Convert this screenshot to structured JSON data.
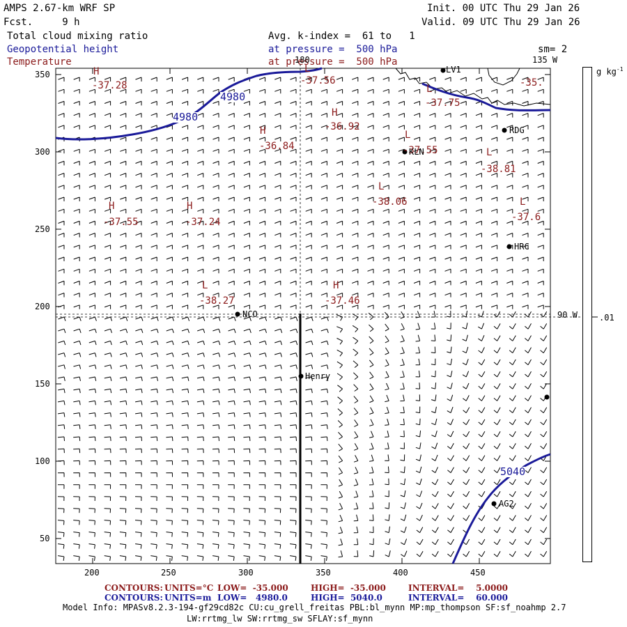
{
  "header": {
    "product": "AMPS 2.67-km WRF SP",
    "forecast": "Fcst.     9 h",
    "init": "Init. 00 UTC Thu 29 Jan 26",
    "valid": "Valid. 09 UTC Thu 29 Jan 26",
    "field_cloud": "Total cloud mixing ratio",
    "field_height": "Geopotential height",
    "field_temp": "Temperature",
    "avg_line": "Avg. k-index =  61 to   1",
    "pressure_height": "at pressure =  500 hPa",
    "pressure_temp": "at pressure =  500 hPa",
    "smoothing": "sm= 2"
  },
  "map": {
    "x_ticks": [
      "200",
      "250",
      "300",
      "350",
      "400",
      "450"
    ],
    "y_ticks": [
      "350",
      "300",
      "250",
      "200",
      "150",
      "100",
      "50"
    ],
    "meridian_labels": {
      "lon180": "180",
      "lon135": "135 W",
      "lon90": "90 W"
    },
    "colorbar": {
      "unit": "g kg",
      "unit_exp": "-1",
      "tick": ".01"
    },
    "height_labels": [
      "4980",
      "4980",
      "5040"
    ],
    "highs_lows": [
      {
        "type": "H",
        "value": "-37.28"
      },
      {
        "type": "L",
        "value": "-37.56"
      },
      {
        "type": "L",
        "value": "-37.75"
      },
      {
        "type": "",
        "value": "-35."
      },
      {
        "type": "H",
        "value": "-36.92"
      },
      {
        "type": "H",
        "value": "-36.84"
      },
      {
        "type": "L",
        "value": "-37.55"
      },
      {
        "type": "L",
        "value": "-38.81"
      },
      {
        "type": "L",
        "value": "-38.06"
      },
      {
        "type": "H",
        "value": "-37.55"
      },
      {
        "type": "H",
        "value": "-37.24"
      },
      {
        "type": "L",
        "value": "-37.6"
      },
      {
        "type": "L",
        "value": "-38.27"
      },
      {
        "type": "H",
        "value": "-37.46"
      }
    ],
    "stations": [
      "LV1",
      "RDG",
      "KLN",
      "HRC",
      "NCO",
      "Henry",
      "AG2"
    ]
  },
  "footer": {
    "t_label": "CONTOURS:",
    "t_units": "UNITS=°C",
    "t_low": "LOW=  -35.000",
    "t_high": "HIGH=  -35.000",
    "t_int": "INTERVAL=    5.0000",
    "h_label": "CONTOURS:",
    "h_units": "UNITS=m",
    "h_low": "LOW=   4980.0",
    "h_high": "HIGH=  5040.0",
    "h_int": "INTERVAL=    60.000",
    "model_info": "Model Info: MPASv8.2.3-194-gf29cd82c CU:cu_grell_freitas PBL:bl_mynn MP:mp_thompson SF:sf_noahmp 2.7",
    "model_info2": "LW:rrtmg_lw SW:rrtmg_sw SFLAY:sf_mynn"
  },
  "colors": {
    "navy": "#1a1a99",
    "red": "#8b1a1a",
    "black": "#000000"
  }
}
